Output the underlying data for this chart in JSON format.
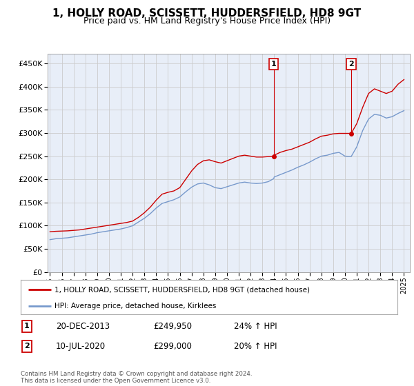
{
  "title": "1, HOLLY ROAD, SCISSETT, HUDDERSFIELD, HD8 9GT",
  "subtitle": "Price paid vs. HM Land Registry's House Price Index (HPI)",
  "title_fontsize": 11,
  "subtitle_fontsize": 9,
  "ytick_values": [
    0,
    50000,
    100000,
    150000,
    200000,
    250000,
    300000,
    350000,
    400000,
    450000
  ],
  "ylim": [
    0,
    470000
  ],
  "xlim_start": 1994.8,
  "xlim_end": 2025.5,
  "grid_color": "#cccccc",
  "background_color": "#ffffff",
  "plot_bg_color": "#e8eef8",
  "legend_entry1": "1, HOLLY ROAD, SCISSETT, HUDDERSFIELD, HD8 9GT (detached house)",
  "legend_entry2": "HPI: Average price, detached house, Kirklees",
  "sale1_label": "1",
  "sale1_date": "20-DEC-2013",
  "sale1_price": "£249,950",
  "sale1_pct": "24% ↑ HPI",
  "sale1_x": 2013.97,
  "sale1_y": 249950,
  "sale2_label": "2",
  "sale2_date": "10-JUL-2020",
  "sale2_price": "£299,000",
  "sale2_pct": "20% ↑ HPI",
  "sale2_x": 2020.53,
  "sale2_y": 299000,
  "footer": "Contains HM Land Registry data © Crown copyright and database right 2024.\nThis data is licensed under the Open Government Licence v3.0.",
  "red_color": "#cc0000",
  "blue_color": "#7799cc",
  "xtick_years": [
    1995,
    1996,
    1997,
    1998,
    1999,
    2000,
    2001,
    2002,
    2003,
    2004,
    2005,
    2006,
    2007,
    2008,
    2009,
    2010,
    2011,
    2012,
    2013,
    2014,
    2015,
    2016,
    2017,
    2018,
    2019,
    2020,
    2021,
    2022,
    2023,
    2024,
    2025
  ],
  "house_price_data": {
    "years": [
      1995.0,
      1995.5,
      1996.0,
      1996.5,
      1997.0,
      1997.5,
      1998.0,
      1998.5,
      1999.0,
      1999.5,
      2000.0,
      2000.5,
      2001.0,
      2001.5,
      2002.0,
      2002.5,
      2003.0,
      2003.5,
      2004.0,
      2004.5,
      2005.0,
      2005.5,
      2006.0,
      2006.5,
      2007.0,
      2007.5,
      2008.0,
      2008.5,
      2009.0,
      2009.5,
      2010.0,
      2010.5,
      2011.0,
      2011.5,
      2012.0,
      2012.5,
      2013.0,
      2013.5,
      2013.97,
      2014.0,
      2014.5,
      2015.0,
      2015.5,
      2016.0,
      2016.5,
      2017.0,
      2017.5,
      2018.0,
      2018.5,
      2019.0,
      2019.5,
      2020.0,
      2020.53,
      2021.0,
      2021.5,
      2022.0,
      2022.5,
      2023.0,
      2023.5,
      2024.0,
      2024.5,
      2025.0
    ],
    "red_values": [
      87000,
      88000,
      88500,
      89000,
      90000,
      91000,
      93000,
      95000,
      97000,
      99000,
      101000,
      103000,
      105000,
      107000,
      110000,
      118000,
      128000,
      140000,
      155000,
      168000,
      172000,
      175000,
      182000,
      200000,
      218000,
      232000,
      240000,
      242000,
      238000,
      235000,
      240000,
      245000,
      250000,
      252000,
      250000,
      248000,
      248000,
      249000,
      249950,
      252000,
      258000,
      262000,
      265000,
      270000,
      275000,
      280000,
      287000,
      293000,
      295000,
      298000,
      299000,
      299000,
      299000,
      320000,
      355000,
      385000,
      395000,
      390000,
      385000,
      390000,
      405000,
      415000
    ],
    "blue_values": [
      70000,
      72000,
      73000,
      74000,
      76000,
      78000,
      80000,
      82000,
      85000,
      87000,
      89000,
      91000,
      93000,
      96000,
      100000,
      108000,
      116000,
      126000,
      138000,
      148000,
      152000,
      156000,
      162000,
      173000,
      183000,
      190000,
      192000,
      188000,
      182000,
      180000,
      184000,
      188000,
      192000,
      194000,
      192000,
      191000,
      192000,
      195000,
      201600,
      205000,
      210000,
      215000,
      220000,
      226000,
      231000,
      237000,
      244000,
      250000,
      252000,
      256000,
      258000,
      250000,
      249167,
      270000,
      305000,
      330000,
      340000,
      338000,
      332000,
      335000,
      342000,
      348000
    ]
  }
}
